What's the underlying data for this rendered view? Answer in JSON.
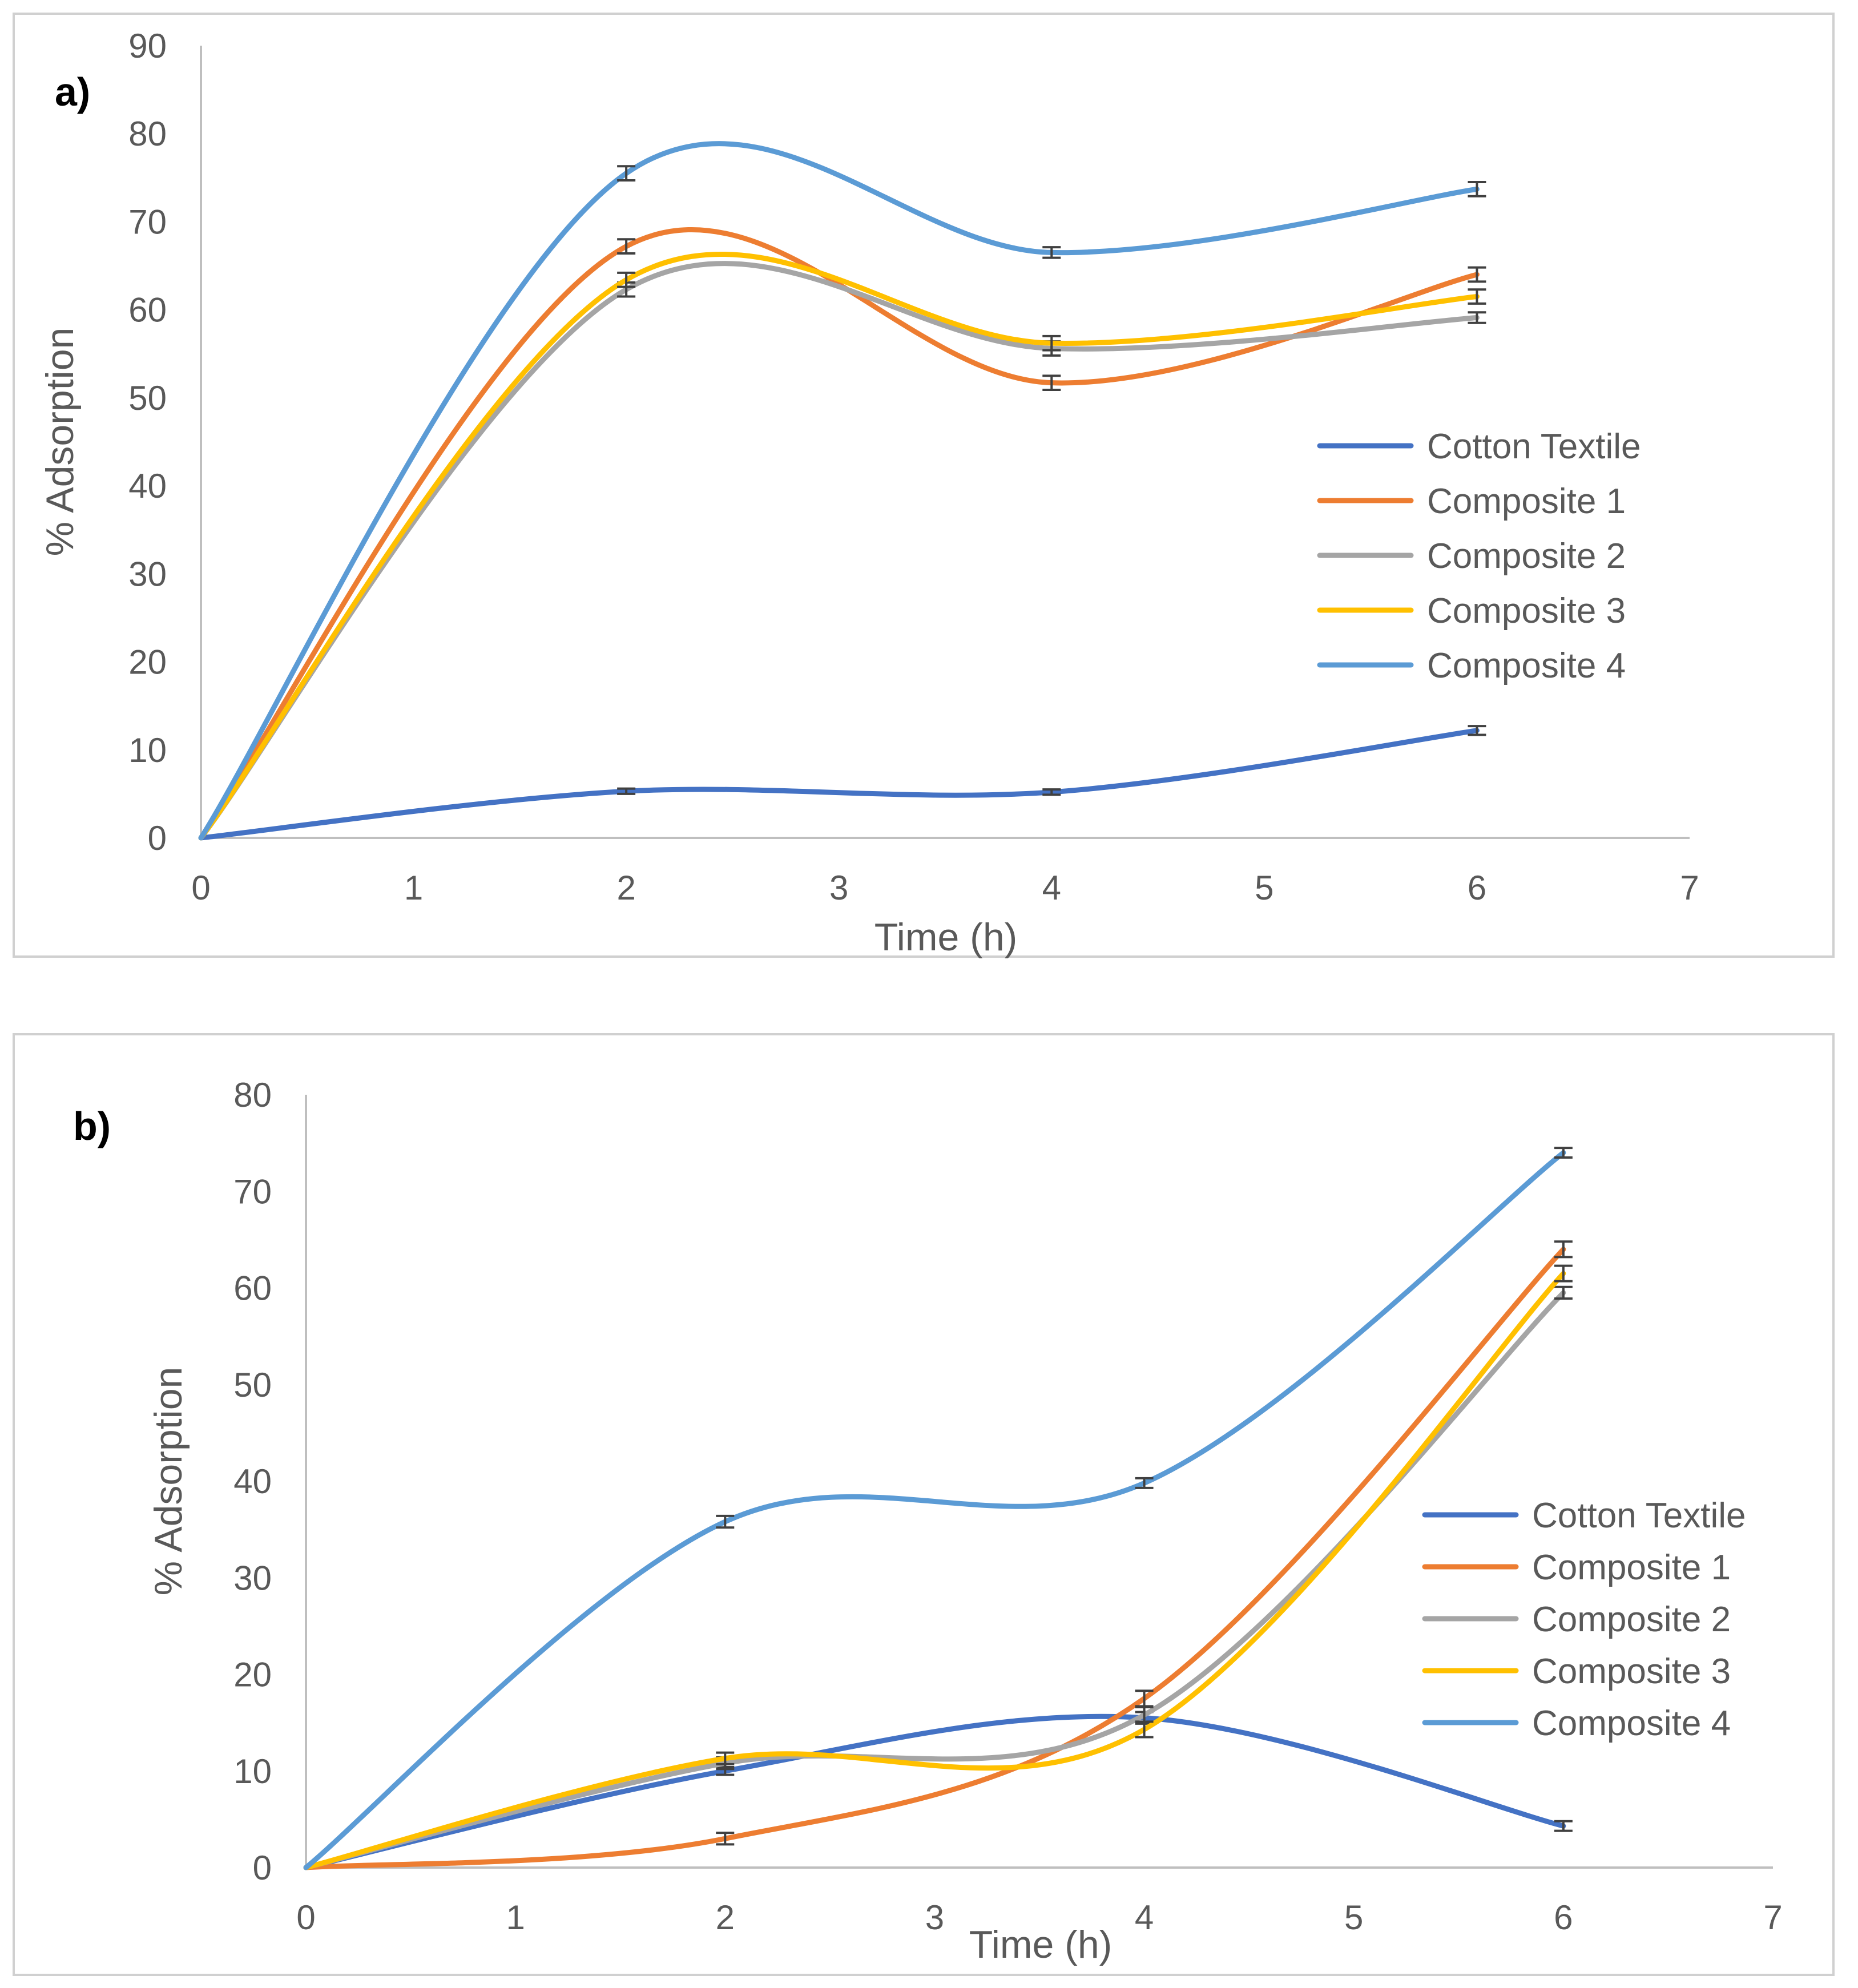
{
  "chart_data": [
    {
      "panel_label": "a)",
      "type": "line",
      "title": "",
      "xlabel": "Time (h)",
      "ylabel": "% Adsorption",
      "xlim": [
        0,
        7
      ],
      "ylim": [
        0,
        90
      ],
      "x_ticks": [
        "0",
        "1",
        "2",
        "3",
        "4",
        "5",
        "6",
        "7"
      ],
      "y_ticks": [
        "0",
        "10",
        "20",
        "30",
        "40",
        "50",
        "60",
        "70",
        "80",
        "90"
      ],
      "legend_position": "right",
      "x": [
        0,
        2,
        4,
        6
      ],
      "series": [
        {
          "name": "Cotton Textile",
          "color": "#4472C4",
          "values": [
            0,
            5.3,
            5.2,
            12.2
          ],
          "error": [
            0,
            0.3,
            0.3,
            0.5
          ]
        },
        {
          "name": "Composite 1",
          "color": "#ED7D31",
          "values": [
            0,
            67.2,
            51.7,
            64.0
          ],
          "error": [
            0,
            0.8,
            0.8,
            0.8
          ]
        },
        {
          "name": "Composite 2",
          "color": "#A5A5A5",
          "values": [
            0,
            62.3,
            55.6,
            59.1
          ],
          "error": [
            0,
            0.8,
            0.8,
            0.6
          ]
        },
        {
          "name": "Composite 3",
          "color": "#FFC000",
          "values": [
            0,
            63.4,
            56.2,
            61.5
          ],
          "error": [
            0,
            0.8,
            0.8,
            0.8
          ]
        },
        {
          "name": "Composite 4",
          "color": "#5B9BD5",
          "values": [
            0,
            75.5,
            66.5,
            73.7
          ],
          "error": [
            0,
            0.8,
            0.6,
            0.8
          ]
        }
      ]
    },
    {
      "panel_label": "b)",
      "type": "line",
      "title": "",
      "xlabel": "Time (h)",
      "ylabel": "% Adsorption",
      "xlim": [
        0,
        7
      ],
      "ylim": [
        0,
        80
      ],
      "x_ticks": [
        "0",
        "1",
        "2",
        "3",
        "4",
        "5",
        "6",
        "7"
      ],
      "y_ticks": [
        "0",
        "10",
        "20",
        "30",
        "40",
        "50",
        "60",
        "70",
        "80"
      ],
      "legend_position": "right",
      "x": [
        0,
        2,
        4,
        6
      ],
      "series": [
        {
          "name": "Cotton Textile",
          "color": "#4472C4",
          "values": [
            0,
            10.0,
            15.5,
            4.3
          ],
          "error": [
            0,
            0.4,
            0.6,
            0.5
          ]
        },
        {
          "name": "Composite 1",
          "color": "#ED7D31",
          "values": [
            0,
            3.0,
            17.5,
            64.0
          ],
          "error": [
            0,
            0.6,
            0.8,
            0.8
          ]
        },
        {
          "name": "Composite 2",
          "color": "#A5A5A5",
          "values": [
            0,
            10.8,
            15.8,
            59.5
          ],
          "error": [
            0,
            0.6,
            0.8,
            0.6
          ]
        },
        {
          "name": "Composite 3",
          "color": "#FFC000",
          "values": [
            0,
            11.3,
            14.3,
            61.5
          ],
          "error": [
            0,
            0.6,
            0.8,
            0.8
          ]
        },
        {
          "name": "Composite 4",
          "color": "#5B9BD5",
          "values": [
            0,
            35.8,
            39.8,
            74.0
          ],
          "error": [
            0,
            0.6,
            0.5,
            0.5
          ]
        }
      ]
    }
  ]
}
